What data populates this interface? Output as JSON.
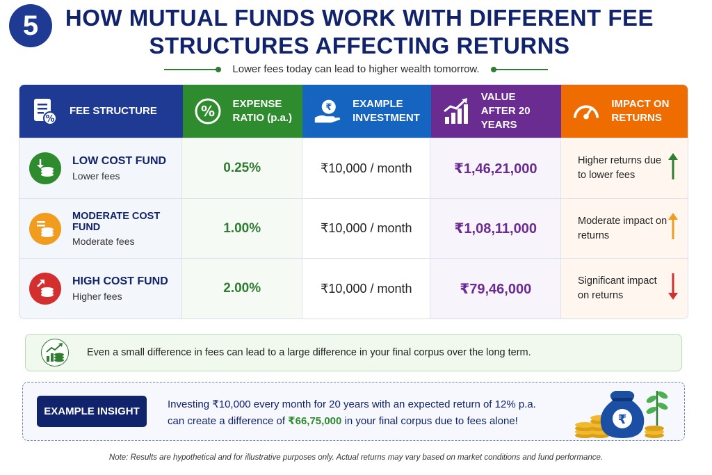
{
  "badge": "5",
  "title": "HOW MUTUAL FUNDS WORK WITH DIFFERENT FEE STRUCTURES AFFECTING RETURNS",
  "subtitle": "Lower fees today can lead to higher wealth tomorrow.",
  "colors": {
    "navy": "#11236b",
    "green": "#2e8b2e",
    "blue": "#1565c0",
    "purple": "#6a2c91",
    "orange": "#ef6c00",
    "low_fund": "#2e8b2e",
    "moderate_fund": "#f29c1f",
    "high_fund": "#d32f2f"
  },
  "table": {
    "headers": {
      "fee_structure": "FEE STRUCTURE",
      "expense_ratio": "EXPENSE RATIO (p.a.)",
      "example_investment": "EXAMPLE INVESTMENT",
      "value_after": "VALUE AFTER 20 YEARS",
      "impact": "IMPACT ON RETURNS"
    },
    "rows": [
      {
        "name": "LOW COST FUND",
        "sub": "Lower fees",
        "ratio": "0.25%",
        "investment": "₹10,000 / month",
        "value": "₹1,46,21,000",
        "impact": "Higher returns due to lower fees",
        "icon": "coins-down-icon",
        "arrow": "arrow-up-icon"
      },
      {
        "name": "MODERATE COST FUND",
        "sub": "Moderate fees",
        "ratio": "1.00%",
        "investment": "₹10,000 / month",
        "value": "₹1,08,11,000",
        "impact": "Moderate impact on returns",
        "icon": "coins-equal-icon",
        "arrow": "arrow-up-icon"
      },
      {
        "name": "HIGH COST FUND",
        "sub": "Higher fees",
        "ratio": "2.00%",
        "investment": "₹10,000 / month",
        "value": "₹79,46,000",
        "impact": "Significant impact on returns",
        "icon": "coins-up-icon",
        "arrow": "arrow-down-icon"
      }
    ]
  },
  "tip": "Even a small difference in fees can lead to a large difference in your final corpus over the long term.",
  "insight": {
    "label": "EXAMPLE INSIGHT",
    "line1": "Investing ₹10,000 every month for 20 years with an expected return of 12% p.a.",
    "line2_pre": "can create a difference of ",
    "line2_highlight": "₹66,75,000",
    "line2_post": " in your final corpus due to fees alone!"
  },
  "note": "Note: Results are hypothetical and for illustrative purposes only. Actual returns may vary based on market conditions and fund performance."
}
